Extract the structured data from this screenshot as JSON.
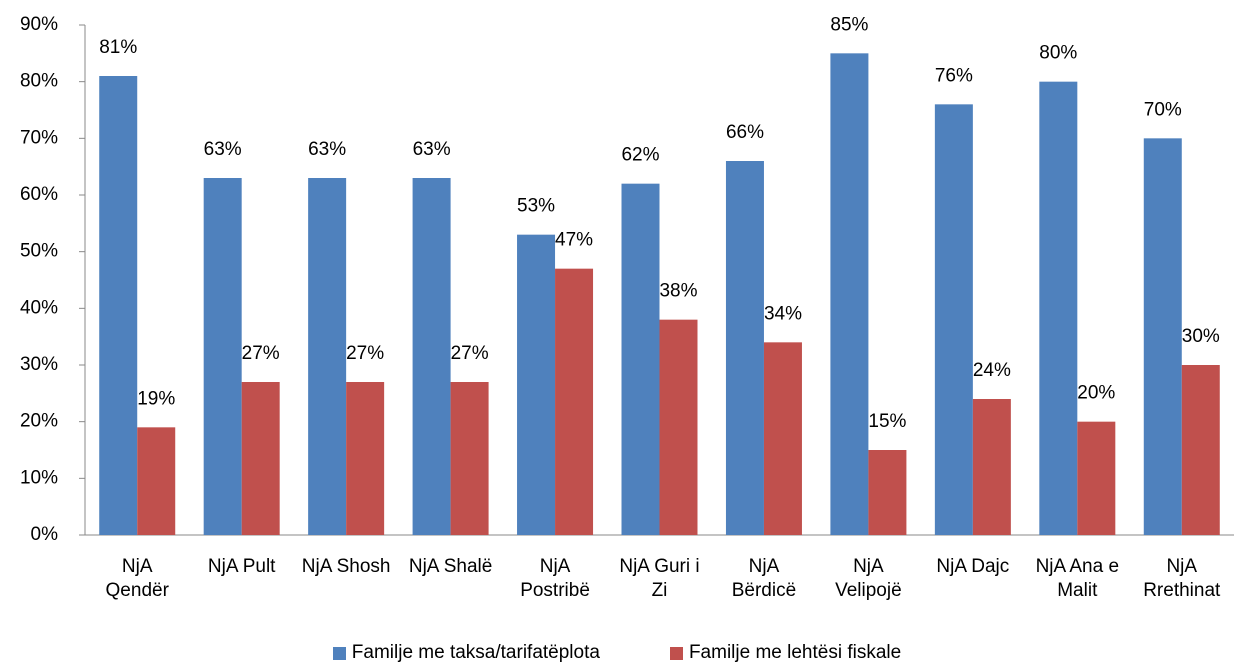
{
  "chart_data": {
    "type": "bar",
    "categories": [
      "NjA Qendër",
      "NjA Pult",
      "NjA Shosh",
      "NjA Shalë",
      "NjA Postribë",
      "NjA Guri i Zi",
      "NjA Bërdicë",
      "NjA Velipojë",
      "NjA Dajc",
      "NjA Ana e Malit",
      "NjA Rrethinat"
    ],
    "series": [
      {
        "name": "Familje me taksa/tarifatëplota",
        "color": "#4f81bd",
        "values": [
          81,
          63,
          63,
          63,
          53,
          62,
          66,
          85,
          76,
          80,
          70
        ],
        "value_labels": [
          "81%",
          "63%",
          "63%",
          "63%",
          "53%",
          "62%",
          "66%",
          "85%",
          "76%",
          "80%",
          "70%"
        ]
      },
      {
        "name": "Familje me lehtësi fiskale",
        "color": "#c0504d",
        "values": [
          19,
          27,
          27,
          27,
          47,
          38,
          34,
          15,
          24,
          20,
          30
        ],
        "value_labels": [
          "19%",
          "27%",
          "27%",
          "27%",
          "47%",
          "38%",
          "34%",
          "15%",
          "24%",
          "20%",
          "30%"
        ]
      }
    ],
    "ylim": [
      0,
      90
    ],
    "yticks": [
      {
        "value": 0,
        "label": "0%"
      },
      {
        "value": 10,
        "label": "10%"
      },
      {
        "value": 20,
        "label": "20%"
      },
      {
        "value": 30,
        "label": "30%"
      },
      {
        "value": 40,
        "label": "40%"
      },
      {
        "value": 50,
        "label": "50%"
      },
      {
        "value": 60,
        "label": "60%"
      },
      {
        "value": 70,
        "label": "70%"
      },
      {
        "value": 80,
        "label": "80%"
      },
      {
        "value": 90,
        "label": "90%"
      }
    ],
    "legend": "bottom"
  }
}
